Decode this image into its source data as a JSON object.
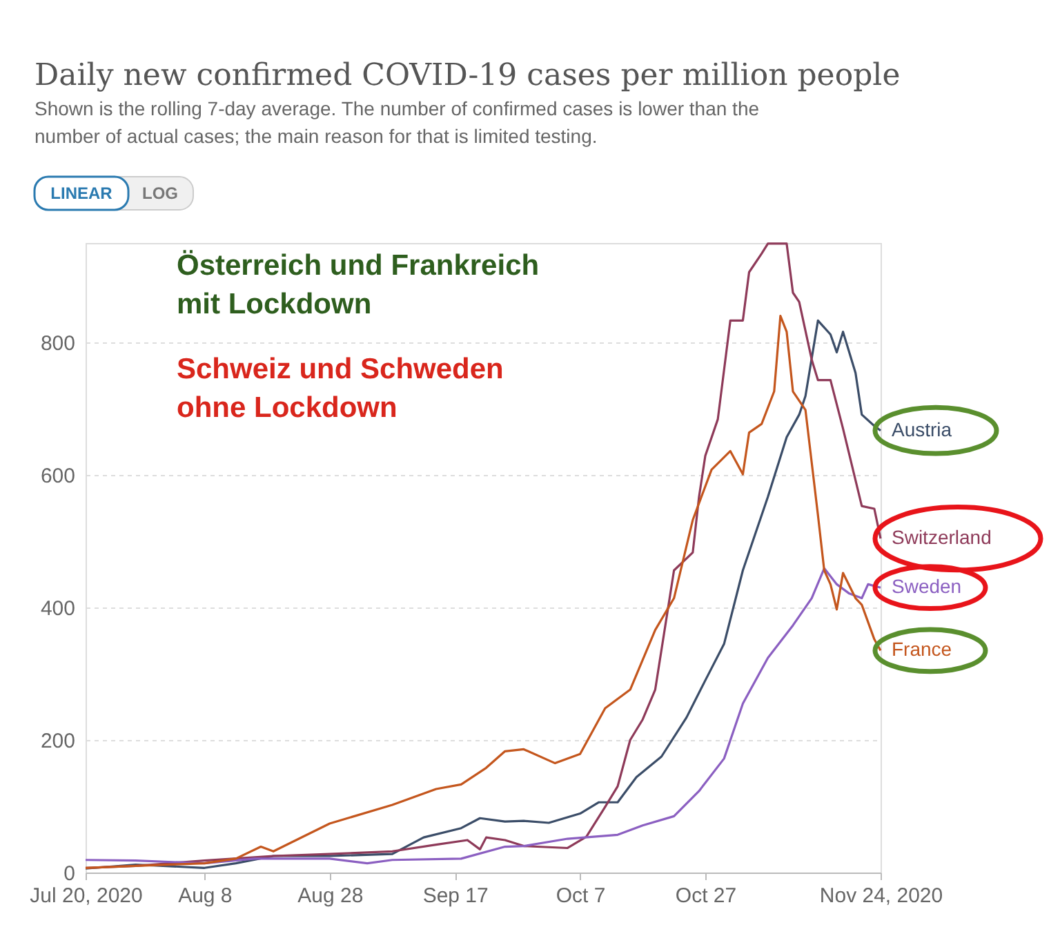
{
  "chart_data": {
    "type": "line",
    "title": "Daily new confirmed COVID-19 cases per million people",
    "subtitle": "Shown is the rolling 7-day average. The number of confirmed cases is lower than the number of actual cases; the main reason for that is limited testing.",
    "annotations": [
      "LINEAR",
      "LOG",
      "Österreich und Frankreich\nmit Lockdown",
      "Schweiz und Schweden\nohne Lockdown"
    ],
    "xlim": [
      "2020-07-20",
      "2020-11-24"
    ],
    "xticks": [
      {
        "value": "2020-07-20",
        "label": "Jul 20, 2020"
      },
      {
        "value": "2020-08-08",
        "label": "Aug 8"
      },
      {
        "value": "2020-08-28",
        "label": "Aug 28"
      },
      {
        "value": "2020-09-17",
        "label": "Sep 17"
      },
      {
        "value": "2020-10-07",
        "label": "Oct 7"
      },
      {
        "value": "2020-10-27",
        "label": "Oct 27"
      },
      {
        "value": "2020-11-24",
        "label": "Nov 24, 2020"
      }
    ],
    "ylim": [
      0,
      950
    ],
    "yticks": [
      0,
      200,
      400,
      600,
      800
    ],
    "grid": "y",
    "legend": false,
    "marker": "none",
    "line_style": "solid",
    "series": [
      {
        "name": "Austria",
        "color": "#3b4d68",
        "x": [
          "2020-07-20",
          "2020-07-28",
          "2020-08-08",
          "2020-08-13",
          "2020-08-19",
          "2020-08-28",
          "2020-09-07",
          "2020-09-12",
          "2020-09-18",
          "2020-09-21",
          "2020-09-25",
          "2020-09-28",
          "2020-10-02",
          "2020-10-07",
          "2020-10-10",
          "2020-10-13",
          "2020-10-16",
          "2020-10-20",
          "2020-10-24",
          "2020-10-27",
          "2020-10-30",
          "2020-11-02",
          "2020-11-06",
          "2020-11-09",
          "2020-11-11",
          "2020-11-12",
          "2020-11-14",
          "2020-11-16",
          "2020-11-17",
          "2020-11-18",
          "2020-11-20",
          "2020-11-21",
          "2020-11-23",
          "2020-11-24"
        ],
        "values": [
          6,
          12,
          7,
          14,
          25,
          25,
          28,
          53,
          67,
          82,
          77,
          78,
          75,
          89,
          106,
          106,
          144,
          175,
          234,
          290,
          345,
          456,
          567,
          657,
          691,
          719,
          833,
          812,
          785,
          816,
          754,
          691,
          674,
          667
        ]
      },
      {
        "name": "Switzerland",
        "color": "#8e3a59",
        "x": [
          "2020-07-20",
          "2020-07-28",
          "2020-08-08",
          "2020-08-19",
          "2020-08-28",
          "2020-09-07",
          "2020-09-14",
          "2020-09-19",
          "2020-09-21",
          "2020-09-22",
          "2020-09-25",
          "2020-09-28",
          "2020-10-05",
          "2020-10-08",
          "2020-10-11",
          "2020-10-13",
          "2020-10-15",
          "2020-10-17",
          "2020-10-19",
          "2020-10-22",
          "2020-10-25",
          "2020-10-26",
          "2020-10-27",
          "2020-10-29",
          "2020-10-31",
          "2020-11-02",
          "2020-11-03",
          "2020-11-05",
          "2020-11-06",
          "2020-11-09",
          "2020-11-10",
          "2020-11-11",
          "2020-11-13",
          "2020-11-14",
          "2020-11-16",
          "2020-11-18",
          "2020-11-21",
          "2020-11-23",
          "2020-11-24"
        ],
        "values": [
          7,
          10,
          18,
          25,
          28,
          32,
          42,
          49,
          35,
          53,
          49,
          40,
          37,
          54,
          99,
          130,
          200,
          231,
          276,
          456,
          483,
          567,
          629,
          684,
          833,
          833,
          906,
          934,
          949,
          949,
          875,
          861,
          774,
          743,
          743,
          670,
          553,
          549,
          504
        ]
      },
      {
        "name": "Sweden",
        "color": "#8b5fc1",
        "x": [
          "2020-07-20",
          "2020-07-28",
          "2020-08-08",
          "2020-08-16",
          "2020-08-28",
          "2020-09-03",
          "2020-09-07",
          "2020-09-18",
          "2020-09-25",
          "2020-09-28",
          "2020-10-05",
          "2020-10-13",
          "2020-10-17",
          "2020-10-22",
          "2020-10-26",
          "2020-10-30",
          "2020-11-02",
          "2020-11-06",
          "2020-11-10",
          "2020-11-13",
          "2020-11-15",
          "2020-11-17",
          "2020-11-19",
          "2020-11-21",
          "2020-11-22",
          "2020-11-24"
        ],
        "values": [
          19,
          18,
          14,
          21,
          21,
          14,
          19,
          21,
          39,
          40,
          51,
          57,
          71,
          85,
          123,
          172,
          255,
          324,
          373,
          414,
          459,
          435,
          421,
          414,
          435,
          430
        ]
      },
      {
        "name": "France",
        "color": "#c4561d",
        "x": [
          "2020-07-20",
          "2020-07-28",
          "2020-08-08",
          "2020-08-13",
          "2020-08-17",
          "2020-08-19",
          "2020-08-28",
          "2020-09-07",
          "2020-09-14",
          "2020-09-18",
          "2020-09-22",
          "2020-09-25",
          "2020-09-28",
          "2020-10-03",
          "2020-10-07",
          "2020-10-11",
          "2020-10-15",
          "2020-10-19",
          "2020-10-22",
          "2020-10-25",
          "2020-10-28",
          "2020-10-31",
          "2020-11-02",
          "2020-11-03",
          "2020-11-05",
          "2020-11-07",
          "2020-11-08",
          "2020-11-09",
          "2020-11-10",
          "2020-11-12",
          "2020-11-14",
          "2020-11-15",
          "2020-11-16",
          "2020-11-17",
          "2020-11-18",
          "2020-11-20",
          "2020-11-21",
          "2020-11-23",
          "2020-11-24"
        ],
        "values": [
          7,
          10,
          14,
          21,
          39,
          32,
          74,
          102,
          126,
          133,
          158,
          183,
          186,
          165,
          179,
          248,
          276,
          366,
          414,
          532,
          608,
          636,
          601,
          664,
          677,
          726,
          840,
          816,
          726,
          698,
          539,
          456,
          435,
          397,
          452,
          414,
          404,
          352,
          335
        ]
      }
    ]
  }
}
